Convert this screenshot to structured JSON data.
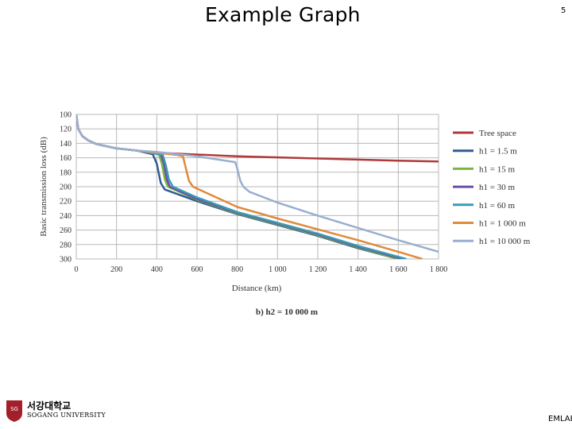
{
  "slide": {
    "title": "Example Graph",
    "page_number": "5",
    "footer": "EMLAB"
  },
  "logo": {
    "korean": "서강대학교",
    "english": "SOGANG UNIVERSITY",
    "emblem_color": "#a31f2a"
  },
  "chart_data": {
    "type": "line",
    "caption": "b) h2 = 10 000 m",
    "xlabel": "Distance (km)",
    "ylabel": "Basic transmission loss (dB)",
    "xlim": [
      0,
      1800
    ],
    "ylim": [
      100,
      300
    ],
    "y_inverted": true,
    "grid": true,
    "legend_position": "right",
    "x_ticks": [
      0,
      200,
      400,
      600,
      800,
      1000,
      1200,
      1400,
      1600,
      1800
    ],
    "x_tick_labels": [
      "0",
      "200",
      "400",
      "600",
      "800",
      "1 000",
      "1 200",
      "1 400",
      "1 600",
      "1 800"
    ],
    "y_ticks": [
      100,
      120,
      140,
      160,
      180,
      200,
      220,
      240,
      260,
      280,
      300
    ],
    "y_tick_labels": [
      "100",
      "120",
      "140",
      "160",
      "180",
      "200",
      "220",
      "240",
      "260",
      "280",
      "300"
    ],
    "series": [
      {
        "name": "Tree space",
        "color": "#b03a3a",
        "x": [
          0,
          10,
          30,
          60,
          100,
          200,
          400,
          800,
          1200,
          1600,
          1800
        ],
        "y": [
          100,
          120,
          130,
          136,
          141,
          147,
          153,
          158,
          161,
          164,
          165
        ]
      },
      {
        "name": "h1 = 1.5 m",
        "color": "#2e5e8e",
        "x": [
          0,
          10,
          30,
          60,
          100,
          200,
          300,
          380,
          400,
          420,
          440,
          600,
          800,
          1000,
          1200,
          1400,
          1600
        ],
        "y": [
          100,
          120,
          130,
          136,
          141,
          147,
          150,
          155,
          168,
          195,
          204,
          220,
          238,
          253,
          268,
          285,
          300
        ]
      },
      {
        "name": "h1 = 15 m",
        "color": "#7cb342",
        "x": [
          0,
          10,
          30,
          60,
          100,
          200,
          300,
          410,
          425,
          440,
          455,
          600,
          800,
          1000,
          1200,
          1400,
          1600
        ],
        "y": [
          100,
          120,
          130,
          136,
          141,
          147,
          150,
          155,
          168,
          190,
          200,
          218,
          237,
          252,
          267,
          284,
          300
        ]
      },
      {
        "name": "h1 = 30 m",
        "color": "#6a4fa3",
        "x": [
          0,
          10,
          30,
          60,
          100,
          200,
          300,
          420,
          435,
          450,
          465,
          600,
          800,
          1000,
          1200,
          1400,
          1620
        ],
        "y": [
          100,
          120,
          130,
          136,
          141,
          147,
          150,
          155,
          168,
          190,
          200,
          217,
          236,
          251,
          266,
          283,
          300
        ]
      },
      {
        "name": "h1 = 60 m",
        "color": "#3a9bb8",
        "x": [
          0,
          10,
          30,
          60,
          100,
          200,
          300,
          430,
          445,
          460,
          480,
          600,
          800,
          1000,
          1200,
          1400,
          1640
        ],
        "y": [
          100,
          120,
          130,
          136,
          141,
          147,
          150,
          156,
          170,
          190,
          200,
          215,
          235,
          250,
          265,
          282,
          300
        ]
      },
      {
        "name": "h1 = 1 000 m",
        "color": "#e08a3c",
        "x": [
          0,
          10,
          30,
          60,
          100,
          200,
          300,
          400,
          500,
          530,
          545,
          560,
          580,
          800,
          1000,
          1200,
          1400,
          1600,
          1720
        ],
        "y": [
          100,
          120,
          130,
          136,
          141,
          147,
          150,
          153,
          156,
          158,
          175,
          192,
          200,
          228,
          244,
          259,
          274,
          290,
          300
        ]
      },
      {
        "name": "h1 = 10 000 m",
        "color": "#9aaed0",
        "x": [
          0,
          10,
          30,
          60,
          100,
          200,
          300,
          400,
          600,
          790,
          800,
          815,
          830,
          860,
          1000,
          1200,
          1400,
          1600,
          1800
        ],
        "y": [
          100,
          120,
          130,
          136,
          141,
          147,
          150,
          152,
          158,
          166,
          175,
          192,
          200,
          207,
          222,
          240,
          257,
          274,
          290
        ]
      }
    ]
  }
}
